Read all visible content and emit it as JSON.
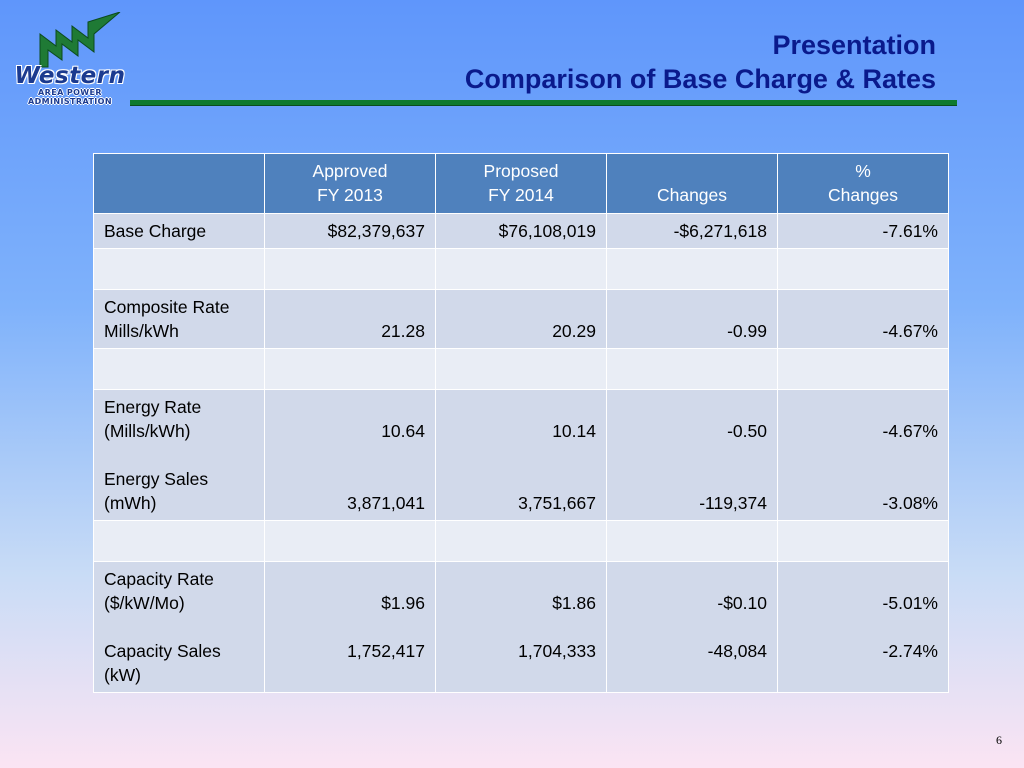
{
  "logo": {
    "name": "Western",
    "subtitle_line1": "AREA POWER",
    "subtitle_line2": "ADMINISTRATION",
    "icon": "transmission-lightning-logo",
    "colors": {
      "green": "#1f7a35",
      "navy": "#1b3a8f"
    }
  },
  "header": {
    "title_line1": "Presentation",
    "title_line2": "Comparison of Base Charge & Rates",
    "title_color": "#0a1a8c",
    "rule_color": "#0d7a2d"
  },
  "table": {
    "columns": [
      {
        "line1": "",
        "line2": ""
      },
      {
        "line1": "Approved",
        "line2": "FY 2013"
      },
      {
        "line1": "Proposed",
        "line2": "FY 2014"
      },
      {
        "line1": "",
        "line2": "Changes"
      },
      {
        "line1": "%",
        "line2": "Changes"
      }
    ],
    "rows": [
      {
        "label": [
          "Base Charge"
        ],
        "approved": [
          "$82,379,637"
        ],
        "proposed": [
          "$76,108,019"
        ],
        "changes": [
          "-$6,271,618"
        ],
        "pct": [
          "-7.61%"
        ]
      },
      {
        "blank": true
      },
      {
        "label": [
          "Composite Rate",
          "Mills/kWh"
        ],
        "approved": [
          "",
          "21.28"
        ],
        "proposed": [
          "",
          "20.29"
        ],
        "changes": [
          "",
          "-0.99"
        ],
        "pct": [
          "",
          "-4.67%"
        ]
      },
      {
        "blank": true
      },
      {
        "label": [
          "Energy Rate",
          "(Mills/kWh)",
          "",
          "Energy Sales",
          "(mWh)"
        ],
        "approved": [
          "",
          "10.64",
          "",
          "",
          "3,871,041"
        ],
        "proposed": [
          "",
          "10.14",
          "",
          "",
          "3,751,667"
        ],
        "changes": [
          "",
          "-0.50",
          "",
          "",
          "-119,374"
        ],
        "pct": [
          "",
          "-4.67%",
          "",
          "",
          "-3.08%"
        ]
      },
      {
        "blank": true
      },
      {
        "label": [
          "Capacity Rate",
          "($/kW/Mo)",
          "",
          "Capacity Sales",
          "(kW)"
        ],
        "approved": [
          "",
          "$1.96",
          "",
          "1,752,417",
          ""
        ],
        "proposed": [
          "",
          "$1.86",
          "",
          "1,704,333",
          ""
        ],
        "changes": [
          "",
          "-$0.10",
          "",
          "-48,084",
          ""
        ],
        "pct": [
          "",
          "-5.01%",
          "",
          "-2.74%",
          ""
        ]
      }
    ],
    "header_color": "#4f81bd",
    "band_dark": "#d1d9ea",
    "band_light": "#e9edf5"
  },
  "footer": {
    "page_number": "6"
  }
}
